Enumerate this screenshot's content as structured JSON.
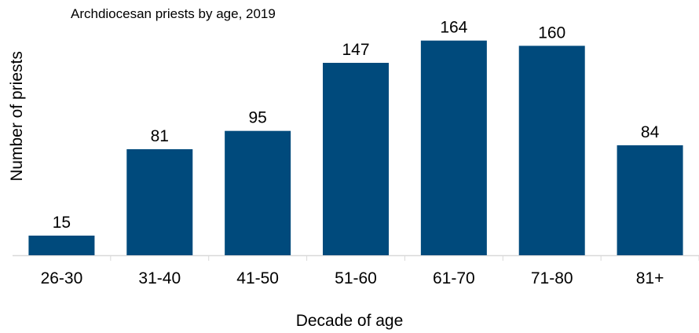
{
  "chart_data": {
    "type": "bar",
    "title": "Archdiocesan priests by age, 2019",
    "xlabel": "Decade of age",
    "ylabel": "Number of priests",
    "categories": [
      "26-30",
      "31-40",
      "41-50",
      "51-60",
      "61-70",
      "71-80",
      "81+"
    ],
    "values": [
      15,
      81,
      95,
      147,
      164,
      160,
      84
    ],
    "data_labels": [
      "15",
      "81",
      "95",
      "147",
      "164",
      "160",
      "84"
    ],
    "ylim": [
      0,
      180
    ],
    "grid": false,
    "legend": "none",
    "bar_color": "#004a7c",
    "axis_color": "#d9d9d9"
  }
}
